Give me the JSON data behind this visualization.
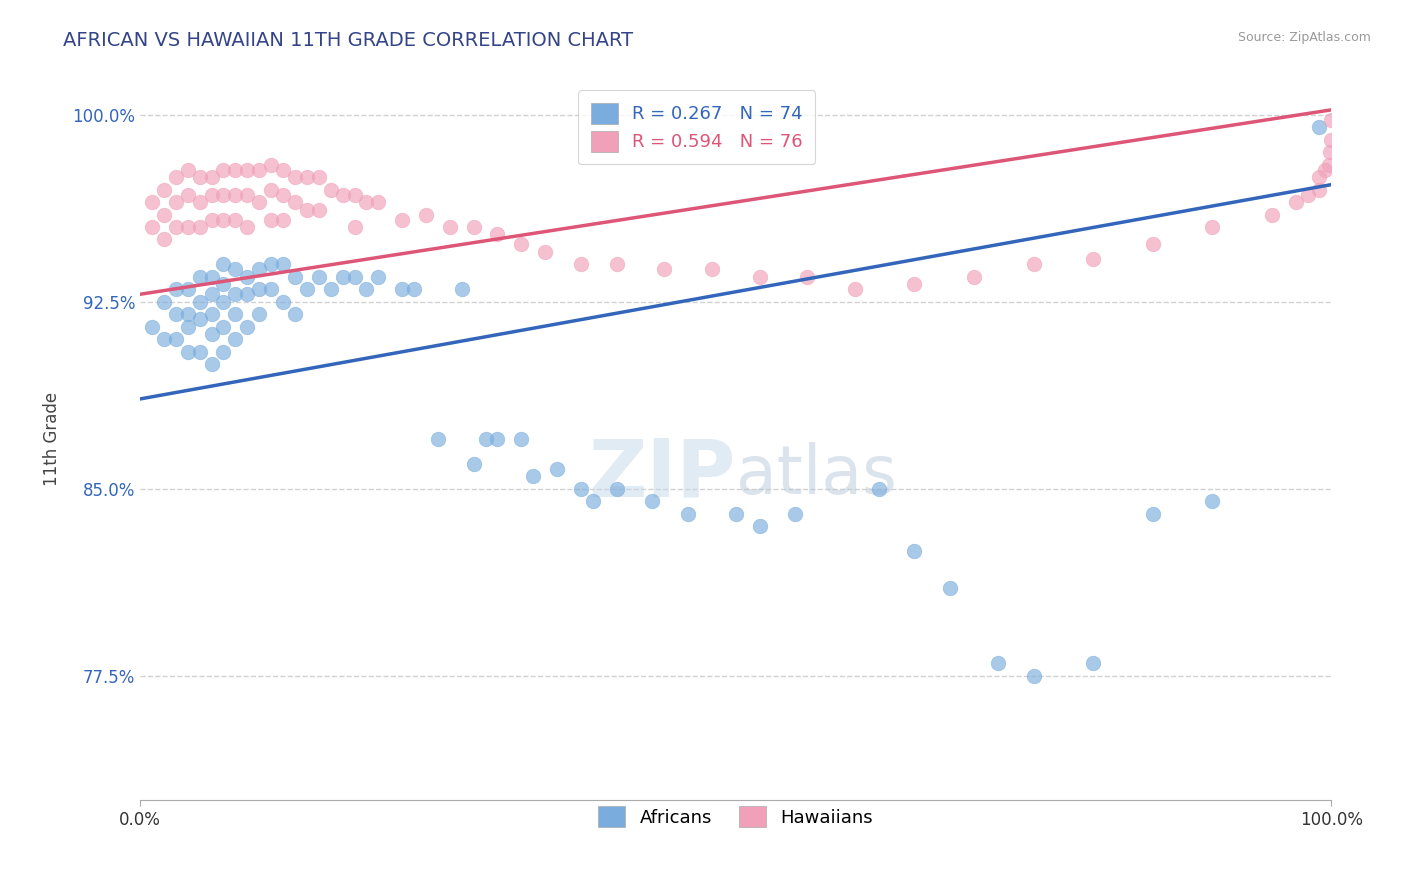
{
  "title": "AFRICAN VS HAWAIIAN 11TH GRADE CORRELATION CHART",
  "source_text": "Source: ZipAtlas.com",
  "ylabel": "11th Grade",
  "xlim": [
    0.0,
    1.0
  ],
  "ylim": [
    0.725,
    1.015
  ],
  "yticks": [
    0.775,
    0.85,
    0.925,
    1.0
  ],
  "ytick_labels": [
    "77.5%",
    "85.0%",
    "92.5%",
    "100.0%"
  ],
  "xticks": [
    0.0,
    1.0
  ],
  "xtick_labels": [
    "0.0%",
    "100.0%"
  ],
  "african_color": "#7aaddd",
  "hawaiian_color": "#f0a0b8",
  "trend_african_color": "#3366bb",
  "trend_hawaiian_color": "#dd5577",
  "african_R": 0.267,
  "african_N": 74,
  "hawaiian_R": 0.594,
  "hawaiian_N": 76,
  "watermark_zip": "ZIP",
  "watermark_atlas": "atlas",
  "watermark_color_zip": "#c8d8e8",
  "watermark_color_atlas": "#b0c8d8",
  "trend_african_x0": 0.0,
  "trend_african_y0": 0.886,
  "trend_african_x1": 1.0,
  "trend_african_y1": 0.972,
  "trend_hawaiian_x0": 0.0,
  "trend_hawaiian_y0": 0.928,
  "trend_hawaiian_x1": 1.0,
  "trend_hawaiian_y1": 1.002,
  "african_x": [
    0.01,
    0.02,
    0.02,
    0.03,
    0.03,
    0.03,
    0.04,
    0.04,
    0.04,
    0.04,
    0.05,
    0.05,
    0.05,
    0.05,
    0.06,
    0.06,
    0.06,
    0.06,
    0.06,
    0.07,
    0.07,
    0.07,
    0.07,
    0.07,
    0.08,
    0.08,
    0.08,
    0.08,
    0.09,
    0.09,
    0.09,
    0.1,
    0.1,
    0.1,
    0.11,
    0.11,
    0.12,
    0.12,
    0.13,
    0.13,
    0.14,
    0.15,
    0.16,
    0.17,
    0.18,
    0.19,
    0.2,
    0.22,
    0.23,
    0.25,
    0.27,
    0.28,
    0.29,
    0.3,
    0.32,
    0.33,
    0.35,
    0.37,
    0.38,
    0.4,
    0.43,
    0.46,
    0.5,
    0.52,
    0.55,
    0.62,
    0.65,
    0.68,
    0.72,
    0.75,
    0.8,
    0.85,
    0.9,
    0.99
  ],
  "african_y": [
    0.915,
    0.925,
    0.91,
    0.93,
    0.92,
    0.91,
    0.93,
    0.92,
    0.915,
    0.905,
    0.935,
    0.925,
    0.918,
    0.905,
    0.935,
    0.928,
    0.92,
    0.912,
    0.9,
    0.94,
    0.932,
    0.925,
    0.915,
    0.905,
    0.938,
    0.928,
    0.92,
    0.91,
    0.935,
    0.928,
    0.915,
    0.938,
    0.93,
    0.92,
    0.94,
    0.93,
    0.94,
    0.925,
    0.935,
    0.92,
    0.93,
    0.935,
    0.93,
    0.935,
    0.935,
    0.93,
    0.935,
    0.93,
    0.93,
    0.87,
    0.93,
    0.86,
    0.87,
    0.87,
    0.87,
    0.855,
    0.858,
    0.85,
    0.845,
    0.85,
    0.845,
    0.84,
    0.84,
    0.835,
    0.84,
    0.85,
    0.825,
    0.81,
    0.78,
    0.775,
    0.78,
    0.84,
    0.845,
    0.995
  ],
  "hawaiian_x": [
    0.01,
    0.01,
    0.02,
    0.02,
    0.02,
    0.03,
    0.03,
    0.03,
    0.04,
    0.04,
    0.04,
    0.05,
    0.05,
    0.05,
    0.06,
    0.06,
    0.06,
    0.07,
    0.07,
    0.07,
    0.08,
    0.08,
    0.08,
    0.09,
    0.09,
    0.09,
    0.1,
    0.1,
    0.11,
    0.11,
    0.11,
    0.12,
    0.12,
    0.12,
    0.13,
    0.13,
    0.14,
    0.14,
    0.15,
    0.15,
    0.16,
    0.17,
    0.18,
    0.18,
    0.19,
    0.2,
    0.22,
    0.24,
    0.26,
    0.28,
    0.3,
    0.32,
    0.34,
    0.37,
    0.4,
    0.44,
    0.48,
    0.52,
    0.56,
    0.6,
    0.65,
    0.7,
    0.75,
    0.8,
    0.85,
    0.9,
    0.95,
    0.97,
    0.98,
    0.99,
    0.99,
    0.995,
    0.998,
    0.999,
    1.0,
    1.0
  ],
  "hawaiian_y": [
    0.965,
    0.955,
    0.97,
    0.96,
    0.95,
    0.975,
    0.965,
    0.955,
    0.978,
    0.968,
    0.955,
    0.975,
    0.965,
    0.955,
    0.975,
    0.968,
    0.958,
    0.978,
    0.968,
    0.958,
    0.978,
    0.968,
    0.958,
    0.978,
    0.968,
    0.955,
    0.978,
    0.965,
    0.98,
    0.97,
    0.958,
    0.978,
    0.968,
    0.958,
    0.975,
    0.965,
    0.975,
    0.962,
    0.975,
    0.962,
    0.97,
    0.968,
    0.968,
    0.955,
    0.965,
    0.965,
    0.958,
    0.96,
    0.955,
    0.955,
    0.952,
    0.948,
    0.945,
    0.94,
    0.94,
    0.938,
    0.938,
    0.935,
    0.935,
    0.93,
    0.932,
    0.935,
    0.94,
    0.942,
    0.948,
    0.955,
    0.96,
    0.965,
    0.968,
    0.97,
    0.975,
    0.978,
    0.98,
    0.985,
    0.99,
    0.998
  ]
}
